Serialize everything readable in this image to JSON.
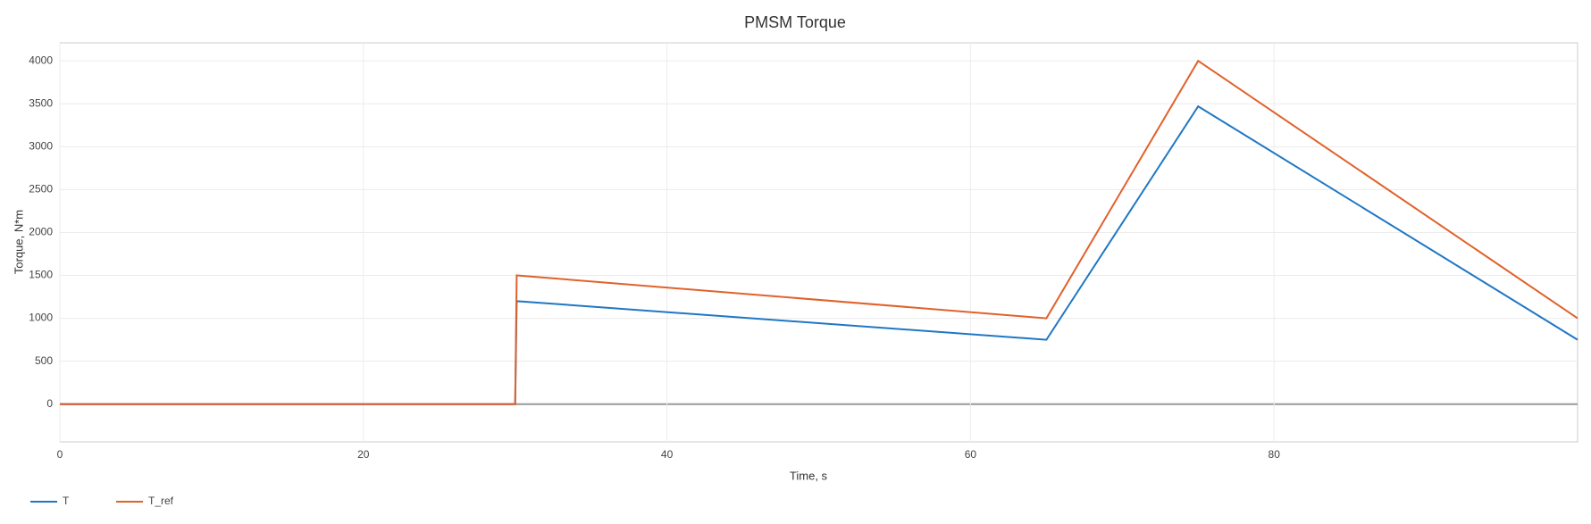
{
  "chart_data": {
    "type": "line",
    "title": "PMSM Torque",
    "x_label": "Time, s",
    "y_label": "Torque, N*m",
    "x": [
      0,
      30,
      30.1,
      65,
      75,
      100
    ],
    "series": [
      {
        "name": "T",
        "color": "#1f77c4",
        "values": [
          0,
          0,
          1200,
          750,
          3470,
          750
        ]
      },
      {
        "name": "T_ref",
        "color": "#e0622b",
        "values": [
          0,
          0,
          1500,
          1000,
          4000,
          1000
        ]
      }
    ],
    "xlim": [
      0,
      100
    ],
    "xticks": [
      0,
      20,
      40,
      60,
      80
    ],
    "ylim": [
      -440,
      4210
    ],
    "yticks": [
      0,
      500,
      1000,
      1500,
      2000,
      2500,
      3000,
      3500,
      4000
    ],
    "grid": true,
    "legend": "bottom-left"
  }
}
